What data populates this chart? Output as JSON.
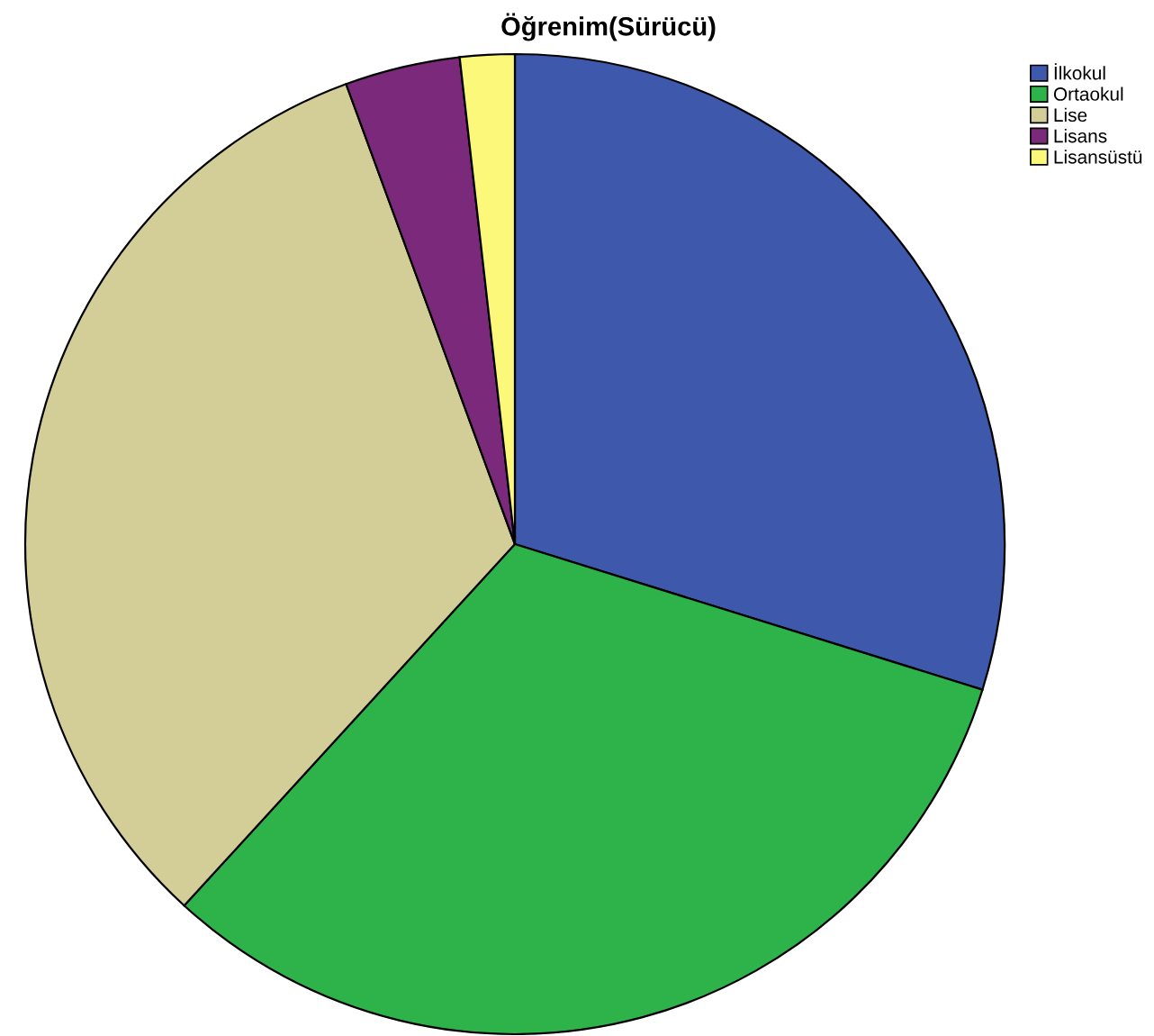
{
  "chart_data": {
    "type": "pie",
    "title": "Öğrenim(Sürücü)",
    "categories": [
      "İlkokul",
      "Ortaokul",
      "Lise",
      "Lisans",
      "Lisansüstü"
    ],
    "values": [
      29.8,
      32.0,
      32.6,
      3.8,
      1.8
    ],
    "colors": [
      "#3e58ac",
      "#2db34a",
      "#d3ce97",
      "#7b2a7b",
      "#fbf87a"
    ],
    "legend": "top right"
  }
}
